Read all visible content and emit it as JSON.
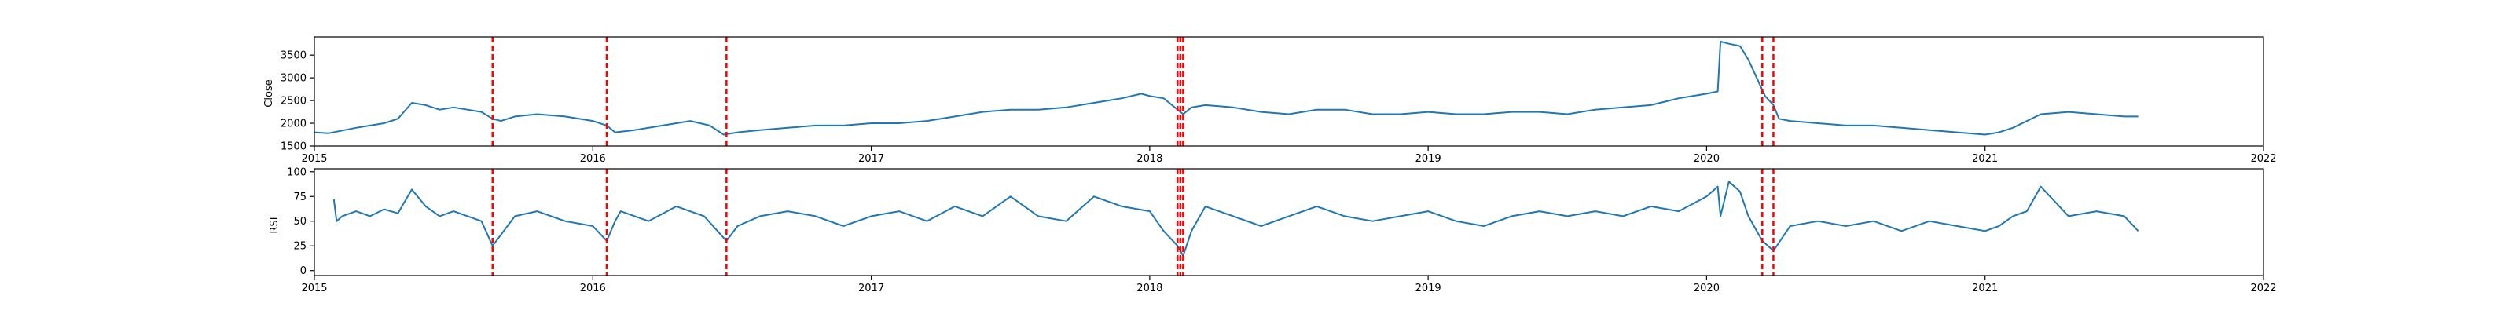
{
  "colors": {
    "line": "#1f77b4",
    "event": "#ff0000",
    "axis": "#000000",
    "background": "#ffffff"
  },
  "chart_data": [
    {
      "type": "line",
      "ylabel": "Close",
      "xlabel": "",
      "xlim": [
        2015.0,
        2022.0
      ],
      "ylim": [
        1500,
        3900
      ],
      "x_ticks": [
        2015,
        2016,
        2017,
        2018,
        2019,
        2020,
        2021,
        2022
      ],
      "x_tick_labels": [
        "2015",
        "2016",
        "2017",
        "2018",
        "2019",
        "2020",
        "2021",
        "2022"
      ],
      "y_ticks": [
        1500,
        2000,
        2500,
        3000,
        3500
      ],
      "y_tick_labels": [
        "1500",
        "2000",
        "2500",
        "3000",
        "3500"
      ],
      "grid": false,
      "series": [
        {
          "name": "Close",
          "x": [
            2015.0,
            2015.05,
            2015.1,
            2015.15,
            2015.2,
            2015.25,
            2015.3,
            2015.35,
            2015.4,
            2015.45,
            2015.5,
            2015.55,
            2015.6,
            2015.64,
            2015.67,
            2015.72,
            2015.8,
            2015.9,
            2016.0,
            2016.05,
            2016.08,
            2016.15,
            2016.25,
            2016.35,
            2016.42,
            2016.47,
            2016.52,
            2016.6,
            2016.7,
            2016.8,
            2016.9,
            2017.0,
            2017.1,
            2017.2,
            2017.3,
            2017.4,
            2017.5,
            2017.6,
            2017.7,
            2017.8,
            2017.9,
            2017.97,
            2018.0,
            2018.05,
            2018.1,
            2018.12,
            2018.15,
            2018.2,
            2018.3,
            2018.4,
            2018.5,
            2018.6,
            2018.7,
            2018.8,
            2018.9,
            2019.0,
            2019.1,
            2019.2,
            2019.3,
            2019.4,
            2019.5,
            2019.6,
            2019.7,
            2019.8,
            2019.9,
            2020.0,
            2020.04,
            2020.05,
            2020.08,
            2020.12,
            2020.15,
            2020.18,
            2020.21,
            2020.24,
            2020.26,
            2020.3,
            2020.4,
            2020.5,
            2020.6,
            2020.7,
            2020.8,
            2020.9,
            2021.0,
            2021.05,
            2021.1,
            2021.2,
            2021.3,
            2021.4,
            2021.5,
            2021.55
          ],
          "values": [
            1800,
            1780,
            1840,
            1900,
            1950,
            2000,
            2100,
            2450,
            2400,
            2300,
            2350,
            2300,
            2250,
            2100,
            2050,
            2150,
            2200,
            2150,
            2050,
            1950,
            1800,
            1850,
            1950,
            2050,
            1950,
            1750,
            1800,
            1850,
            1900,
            1950,
            1950,
            2000,
            2000,
            2050,
            2150,
            2250,
            2300,
            2300,
            2350,
            2450,
            2550,
            2650,
            2600,
            2550,
            2300,
            2200,
            2350,
            2400,
            2350,
            2250,
            2200,
            2300,
            2300,
            2200,
            2200,
            2250,
            2200,
            2200,
            2250,
            2250,
            2200,
            2300,
            2350,
            2400,
            2550,
            2650,
            2700,
            3800,
            3750,
            3700,
            3400,
            3000,
            2600,
            2400,
            2100,
            2050,
            2000,
            1950,
            1950,
            1900,
            1850,
            1800,
            1750,
            1800,
            1900,
            2200,
            2250,
            2200,
            2150,
            2150
          ]
        }
      ],
      "vertical_lines_x": [
        2015.64,
        2016.05,
        2016.48,
        2018.1,
        2018.11,
        2018.12,
        2020.2,
        2020.24
      ]
    },
    {
      "type": "line",
      "ylabel": "RSI",
      "xlabel": "",
      "xlim": [
        2015.0,
        2022.0
      ],
      "ylim": [
        -5,
        103
      ],
      "x_ticks": [
        2015,
        2016,
        2017,
        2018,
        2019,
        2020,
        2021,
        2022
      ],
      "x_tick_labels": [
        "2015",
        "2016",
        "2017",
        "2018",
        "2019",
        "2020",
        "2021",
        "2022"
      ],
      "y_ticks": [
        0,
        25,
        50,
        75,
        100
      ],
      "y_tick_labels": [
        "0",
        "25",
        "50",
        "75",
        "100"
      ],
      "grid": false,
      "series": [
        {
          "name": "RSI",
          "x": [
            2015.07,
            2015.08,
            2015.1,
            2015.15,
            2015.2,
            2015.25,
            2015.3,
            2015.35,
            2015.4,
            2015.45,
            2015.5,
            2015.55,
            2015.6,
            2015.64,
            2015.68,
            2015.72,
            2015.8,
            2015.9,
            2016.0,
            2016.05,
            2016.08,
            2016.1,
            2016.2,
            2016.3,
            2016.4,
            2016.48,
            2016.52,
            2016.6,
            2016.7,
            2016.8,
            2016.9,
            2017.0,
            2017.1,
            2017.2,
            2017.3,
            2017.4,
            2017.5,
            2017.6,
            2017.7,
            2017.8,
            2017.9,
            2018.0,
            2018.05,
            2018.1,
            2018.12,
            2018.15,
            2018.2,
            2018.3,
            2018.4,
            2018.5,
            2018.6,
            2018.7,
            2018.8,
            2018.9,
            2019.0,
            2019.1,
            2019.2,
            2019.3,
            2019.4,
            2019.5,
            2019.6,
            2019.7,
            2019.8,
            2019.9,
            2020.0,
            2020.04,
            2020.05,
            2020.08,
            2020.12,
            2020.15,
            2020.2,
            2020.24,
            2020.3,
            2020.4,
            2020.5,
            2020.6,
            2020.7,
            2020.8,
            2020.9,
            2021.0,
            2021.05,
            2021.1,
            2021.15,
            2021.2,
            2021.3,
            2021.4,
            2021.5,
            2021.55
          ],
          "values": [
            72,
            50,
            55,
            60,
            55,
            62,
            58,
            82,
            65,
            55,
            60,
            55,
            50,
            25,
            40,
            55,
            60,
            50,
            45,
            30,
            50,
            60,
            50,
            65,
            55,
            30,
            45,
            55,
            60,
            55,
            45,
            55,
            60,
            50,
            65,
            55,
            75,
            55,
            50,
            75,
            65,
            60,
            40,
            25,
            15,
            40,
            65,
            55,
            45,
            55,
            65,
            55,
            50,
            55,
            60,
            50,
            45,
            55,
            60,
            55,
            60,
            55,
            65,
            60,
            75,
            85,
            55,
            90,
            80,
            55,
            30,
            20,
            45,
            50,
            45,
            50,
            40,
            50,
            45,
            40,
            45,
            55,
            60,
            85,
            55,
            60,
            55,
            40
          ]
        }
      ],
      "vertical_lines_x": [
        2015.64,
        2016.05,
        2016.48,
        2018.1,
        2018.11,
        2018.12,
        2020.2,
        2020.24
      ]
    }
  ]
}
